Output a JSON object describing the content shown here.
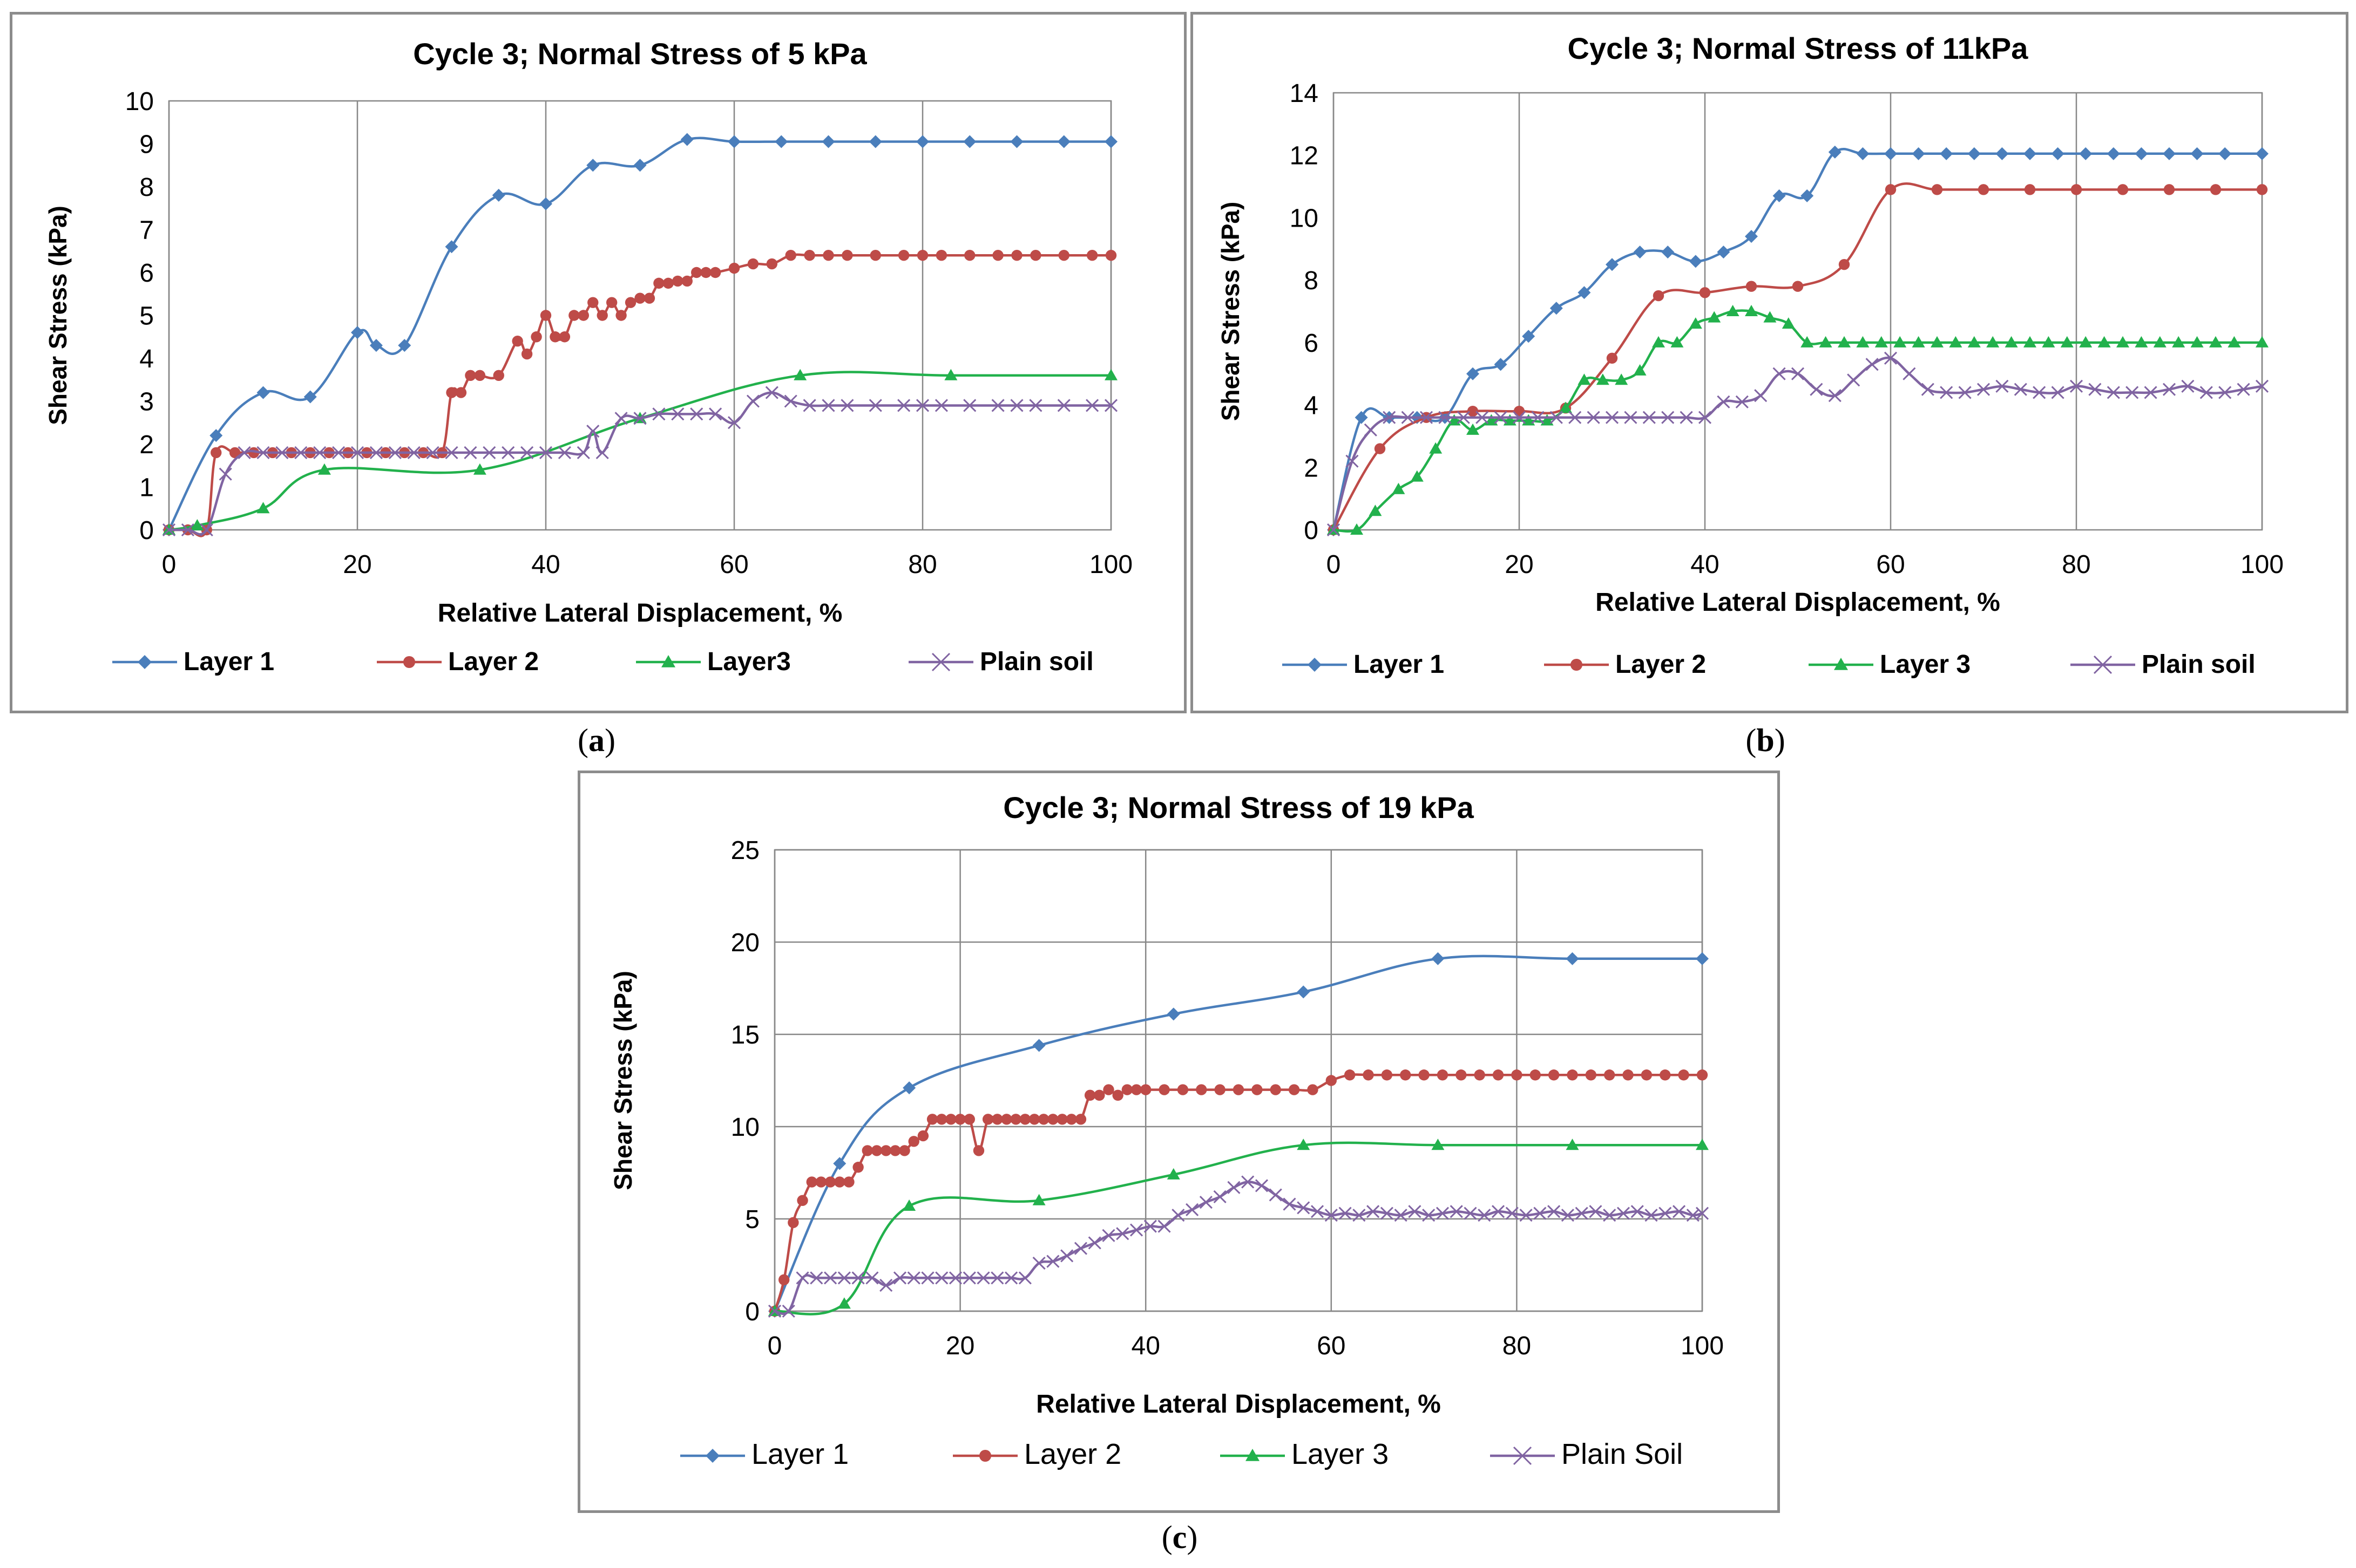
{
  "captions": {
    "a": "a",
    "b": "b",
    "c": "c"
  },
  "series_styles": [
    {
      "color": "#4a7ebb",
      "marker": "diamond"
    },
    {
      "color": "#be4b48",
      "marker": "circle"
    },
    {
      "color": "#22b14c",
      "marker": "triangle"
    },
    {
      "color": "#8064a2",
      "marker": "cross"
    }
  ],
  "chart_data": [
    {
      "type": "line",
      "title": "Cycle 3; Normal Stress of 5 kPa",
      "xlabel": "Relative Lateral Displacement, %",
      "ylabel": "Shear Stress (kPa)",
      "xlim": [
        0,
        100
      ],
      "ylim": [
        0,
        10
      ],
      "xticks": [
        0,
        20,
        40,
        60,
        80,
        100
      ],
      "yticks": [
        0,
        1,
        2,
        3,
        4,
        5,
        6,
        7,
        8,
        9,
        10
      ],
      "grid": "vertical",
      "legend_position": "bottom",
      "series": [
        {
          "name": "Layer 1",
          "x": [
            0,
            5,
            10,
            15,
            20,
            22,
            25,
            30,
            35,
            40,
            45,
            50,
            55,
            60,
            65,
            70,
            75,
            80,
            85,
            90,
            95,
            100
          ],
          "y": [
            0,
            2.2,
            3.2,
            3.1,
            4.6,
            4.3,
            4.3,
            6.6,
            7.8,
            7.6,
            8.5,
            8.5,
            9.1,
            9.05,
            9.05,
            9.05,
            9.05,
            9.05,
            9.05,
            9.05,
            9.05,
            9.05
          ]
        },
        {
          "name": "Layer 2",
          "x": [
            0,
            2,
            4,
            5,
            7,
            9,
            11,
            13,
            15,
            17,
            19,
            21,
            23,
            25,
            27,
            29,
            30,
            31,
            32,
            33,
            35,
            37,
            38,
            39,
            40,
            41,
            42,
            43,
            44,
            45,
            46,
            47,
            48,
            49,
            50,
            51,
            52,
            53,
            54,
            55,
            56,
            57,
            58,
            60,
            62,
            64,
            66,
            68,
            70,
            72,
            75,
            78,
            80,
            82,
            85,
            88,
            90,
            92,
            95,
            98,
            100
          ],
          "y": [
            0,
            0,
            0,
            1.8,
            1.8,
            1.8,
            1.8,
            1.8,
            1.8,
            1.8,
            1.8,
            1.8,
            1.8,
            1.8,
            1.8,
            1.8,
            3.2,
            3.2,
            3.6,
            3.6,
            3.6,
            4.4,
            4.1,
            4.5,
            5.0,
            4.5,
            4.5,
            5.0,
            5.0,
            5.3,
            5.0,
            5.3,
            5.0,
            5.3,
            5.4,
            5.4,
            5.75,
            5.75,
            5.8,
            5.8,
            6.0,
            6.0,
            6.0,
            6.1,
            6.2,
            6.2,
            6.4,
            6.4,
            6.4,
            6.4,
            6.4,
            6.4,
            6.4,
            6.4,
            6.4,
            6.4,
            6.4,
            6.4,
            6.4,
            6.4,
            6.4
          ]
        },
        {
          "name": "Layer3",
          "x": [
            0,
            3,
            10,
            16.5,
            33,
            50,
            67,
            83,
            100
          ],
          "y": [
            0,
            0.1,
            0.5,
            1.4,
            1.4,
            2.6,
            3.6,
            3.6,
            3.6
          ]
        },
        {
          "name": "Plain soil",
          "x": [
            0,
            2,
            4,
            6,
            8,
            10,
            12,
            14,
            16,
            18,
            20,
            22,
            24,
            26,
            28,
            30,
            32,
            34,
            36,
            38,
            40,
            42,
            44,
            45,
            46,
            48,
            50,
            52,
            54,
            56,
            58,
            60,
            62,
            64,
            66,
            68,
            70,
            72,
            75,
            78,
            80,
            82,
            85,
            88,
            90,
            92,
            95,
            98,
            100
          ],
          "y": [
            0,
            0,
            0,
            1.3,
            1.8,
            1.8,
            1.8,
            1.8,
            1.8,
            1.8,
            1.8,
            1.8,
            1.8,
            1.8,
            1.8,
            1.8,
            1.8,
            1.8,
            1.8,
            1.8,
            1.8,
            1.8,
            1.8,
            2.3,
            1.8,
            2.6,
            2.6,
            2.7,
            2.7,
            2.7,
            2.7,
            2.5,
            3.0,
            3.2,
            3.0,
            2.9,
            2.9,
            2.9,
            2.9,
            2.9,
            2.9,
            2.9,
            2.9,
            2.9,
            2.9,
            2.9,
            2.9,
            2.9,
            2.9
          ]
        }
      ]
    },
    {
      "type": "line",
      "title": "Cycle 3; Normal Stress of 11kPa",
      "xlabel": "Relative Lateral Displacement, %",
      "ylabel": "Shear Stress (kPa)",
      "xlim": [
        0,
        100
      ],
      "ylim": [
        0,
        14
      ],
      "xticks": [
        0,
        20,
        40,
        60,
        80,
        100
      ],
      "yticks": [
        0,
        2,
        4,
        6,
        8,
        10,
        12,
        14
      ],
      "grid": "vertical",
      "legend_position": "bottom",
      "series": [
        {
          "name": "Layer 1",
          "x": [
            0,
            3,
            6,
            9,
            12,
            15,
            18,
            21,
            24,
            27,
            30,
            33,
            36,
            39,
            42,
            45,
            48,
            51,
            54,
            57,
            60,
            63,
            66,
            69,
            72,
            75,
            78,
            81,
            84,
            87,
            90,
            93,
            96,
            100
          ],
          "y": [
            0,
            3.6,
            3.6,
            3.6,
            3.6,
            5.0,
            5.3,
            6.2,
            7.1,
            7.6,
            8.5,
            8.9,
            8.9,
            8.6,
            8.9,
            9.4,
            10.7,
            10.7,
            12.1,
            12.05,
            12.05,
            12.05,
            12.05,
            12.05,
            12.05,
            12.05,
            12.05,
            12.05,
            12.05,
            12.05,
            12.05,
            12.05,
            12.05,
            12.05
          ]
        },
        {
          "name": "Layer 2",
          "x": [
            0,
            5,
            10,
            15,
            20,
            25,
            30,
            35,
            40,
            45,
            50,
            55,
            60,
            65,
            70,
            75,
            80,
            85,
            90,
            95,
            100
          ],
          "y": [
            0,
            2.6,
            3.6,
            3.8,
            3.8,
            3.9,
            5.5,
            7.5,
            7.6,
            7.8,
            7.8,
            8.5,
            10.9,
            10.9,
            10.9,
            10.9,
            10.9,
            10.9,
            10.9,
            10.9,
            10.9
          ]
        },
        {
          "name": "Layer 3",
          "x": [
            0,
            2.5,
            4.5,
            7,
            9,
            11,
            13,
            15,
            17,
            19,
            21,
            23,
            25,
            27,
            29,
            31,
            33,
            35,
            37,
            39,
            41,
            43,
            45,
            47,
            49,
            51,
            53,
            55,
            57,
            59,
            61,
            63,
            65,
            67,
            69,
            71,
            73,
            75,
            77,
            79,
            81,
            83,
            85,
            87,
            89,
            91,
            93,
            95,
            97,
            100
          ],
          "y": [
            0,
            0,
            0.6,
            1.3,
            1.7,
            2.6,
            3.5,
            3.2,
            3.5,
            3.5,
            3.5,
            3.5,
            3.9,
            4.8,
            4.8,
            4.8,
            5.1,
            6.0,
            6.0,
            6.6,
            6.8,
            7.0,
            7.0,
            6.8,
            6.6,
            6.0,
            6.0,
            6.0,
            6.0,
            6.0,
            6.0,
            6.0,
            6.0,
            6.0,
            6.0,
            6.0,
            6.0,
            6.0,
            6.0,
            6.0,
            6.0,
            6.0,
            6.0,
            6.0,
            6.0,
            6.0,
            6.0,
            6.0,
            6.0,
            6.0
          ]
        },
        {
          "name": "Plain soil",
          "x": [
            0,
            2,
            4,
            6,
            8,
            10,
            12,
            14,
            16,
            18,
            20,
            22,
            24,
            26,
            28,
            30,
            32,
            34,
            36,
            38,
            40,
            42,
            44,
            46,
            48,
            50,
            52,
            54,
            56,
            58,
            60,
            62,
            64,
            66,
            68,
            70,
            72,
            74,
            76,
            78,
            80,
            82,
            84,
            86,
            88,
            90,
            92,
            94,
            96,
            98,
            100
          ],
          "y": [
            0,
            2.2,
            3.2,
            3.6,
            3.6,
            3.6,
            3.6,
            3.6,
            3.6,
            3.6,
            3.6,
            3.6,
            3.6,
            3.6,
            3.6,
            3.6,
            3.6,
            3.6,
            3.6,
            3.6,
            3.6,
            4.1,
            4.1,
            4.3,
            5.0,
            5.0,
            4.5,
            4.3,
            4.8,
            5.3,
            5.5,
            5.0,
            4.5,
            4.4,
            4.4,
            4.5,
            4.6,
            4.5,
            4.4,
            4.4,
            4.6,
            4.5,
            4.4,
            4.4,
            4.4,
            4.5,
            4.6,
            4.4,
            4.4,
            4.5,
            4.6
          ]
        }
      ]
    },
    {
      "type": "line",
      "title": "Cycle 3; Normal Stress of 19 kPa",
      "xlabel": "Relative Lateral Displacement, %",
      "ylabel": "Shear Stress (kPa)",
      "xlim": [
        0,
        100
      ],
      "ylim": [
        0,
        25
      ],
      "xticks": [
        0,
        20,
        40,
        60,
        80,
        100
      ],
      "yticks": [
        0,
        5,
        10,
        15,
        20,
        25
      ],
      "grid": "both",
      "legend_position": "bottom",
      "series": [
        {
          "name": "Layer 1",
          "x": [
            0,
            7,
            14.5,
            28.5,
            43,
            57,
            71.5,
            86,
            100
          ],
          "y": [
            0,
            8,
            12.1,
            14.4,
            16.1,
            17.3,
            19.1,
            19.1,
            19.1
          ]
        },
        {
          "name": "Layer 2",
          "x": [
            0,
            1,
            2,
            3,
            4,
            5,
            6,
            7,
            8,
            9,
            10,
            11,
            12,
            13,
            14,
            15,
            16,
            17,
            18,
            19,
            20,
            21,
            22,
            23,
            24,
            25,
            26,
            27,
            28,
            29,
            30,
            31,
            32,
            33,
            34,
            35,
            36,
            37,
            38,
            39,
            40,
            42,
            44,
            46,
            48,
            50,
            52,
            54,
            56,
            58,
            60,
            62,
            64,
            66,
            68,
            70,
            72,
            74,
            76,
            78,
            80,
            82,
            84,
            86,
            88,
            90,
            92,
            94,
            96,
            98,
            100
          ],
          "y": [
            0,
            1.7,
            4.8,
            6.0,
            7.0,
            7.0,
            7.0,
            7.0,
            7.0,
            7.8,
            8.7,
            8.7,
            8.7,
            8.7,
            8.7,
            9.2,
            9.5,
            10.4,
            10.4,
            10.4,
            10.4,
            10.4,
            8.7,
            10.4,
            10.4,
            10.4,
            10.4,
            10.4,
            10.4,
            10.4,
            10.4,
            10.4,
            10.4,
            10.4,
            11.7,
            11.7,
            12.0,
            11.7,
            12.0,
            12.0,
            12.0,
            12.0,
            12.0,
            12.0,
            12.0,
            12.0,
            12.0,
            12.0,
            12.0,
            12.0,
            12.5,
            12.8,
            12.8,
            12.8,
            12.8,
            12.8,
            12.8,
            12.8,
            12.8,
            12.8,
            12.8,
            12.8,
            12.8,
            12.8,
            12.8,
            12.8,
            12.8,
            12.8,
            12.8,
            12.8,
            12.8
          ]
        },
        {
          "name": "Layer 3",
          "x": [
            0,
            7.5,
            14.5,
            28.5,
            43,
            57,
            71.5,
            86,
            100
          ],
          "y": [
            0,
            0.4,
            5.7,
            6.0,
            7.4,
            9.0,
            9.0,
            9.0,
            9.0
          ]
        },
        {
          "name": "Plain Soil",
          "x": [
            0,
            1.5,
            3,
            4.5,
            6,
            7.5,
            9,
            10.5,
            12,
            13.5,
            15,
            16.5,
            18,
            19.5,
            21,
            22.5,
            24,
            25.5,
            27,
            28.5,
            30,
            31.5,
            33,
            34.5,
            36,
            37.5,
            39,
            40.5,
            42,
            43.5,
            45,
            46.5,
            48,
            49.5,
            51,
            52.5,
            54,
            55.5,
            57,
            58.5,
            60,
            61.5,
            63,
            64.5,
            66,
            67.5,
            69,
            70.5,
            72,
            73.5,
            75,
            76.5,
            78,
            79.5,
            81,
            82.5,
            84,
            85.5,
            87,
            88.5,
            90,
            91.5,
            93,
            94.5,
            96,
            97.5,
            99,
            100
          ],
          "y": [
            0,
            0,
            1.8,
            1.8,
            1.8,
            1.8,
            1.8,
            1.8,
            1.4,
            1.8,
            1.8,
            1.8,
            1.8,
            1.8,
            1.8,
            1.8,
            1.8,
            1.8,
            1.8,
            2.6,
            2.7,
            3.0,
            3.4,
            3.7,
            4.1,
            4.2,
            4.4,
            4.6,
            4.6,
            5.2,
            5.5,
            5.9,
            6.2,
            6.7,
            7.0,
            6.8,
            6.3,
            5.8,
            5.6,
            5.4,
            5.2,
            5.3,
            5.2,
            5.4,
            5.3,
            5.2,
            5.4,
            5.2,
            5.3,
            5.4,
            5.3,
            5.2,
            5.4,
            5.3,
            5.2,
            5.3,
            5.4,
            5.2,
            5.3,
            5.4,
            5.2,
            5.3,
            5.4,
            5.2,
            5.3,
            5.4,
            5.2,
            5.3
          ]
        }
      ]
    }
  ]
}
